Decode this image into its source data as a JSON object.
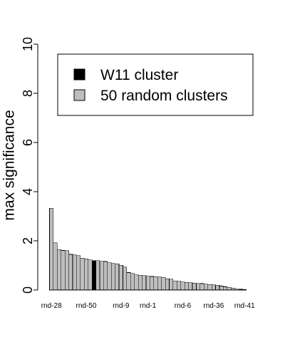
{
  "chart_data": {
    "type": "bar",
    "ylabel": "max significance",
    "ylim": [
      0,
      10
    ],
    "yticks": [
      0,
      2,
      4,
      6,
      8,
      10
    ],
    "legend_position": "top-right",
    "legend": [
      {
        "label": "W11 cluster",
        "color": "#000000"
      },
      {
        "label": "50 random clusters",
        "color": "#bebebe"
      }
    ],
    "highlight_color": "#000000",
    "default_color": "#bebebe",
    "categories": [
      "rnd-28",
      "",
      "",
      "",
      "",
      "",
      "",
      "",
      "",
      "rnd-50",
      "",
      "",
      "",
      "",
      "",
      "",
      "",
      "",
      "rnd-9",
      "",
      "",
      "",
      "",
      "",
      "",
      "rnd-1",
      "",
      "",
      "",
      "",
      "",
      "",
      "",
      "",
      "rnd-6",
      "",
      "",
      "",
      "",
      "",
      "",
      "",
      "rnd-36",
      "",
      "",
      "",
      "",
      "",
      "",
      "",
      "rnd-41"
    ],
    "values": [
      3.33,
      1.92,
      1.65,
      1.61,
      1.6,
      1.45,
      1.43,
      1.4,
      1.3,
      1.27,
      1.22,
      1.2,
      1.19,
      1.17,
      1.16,
      1.11,
      1.08,
      1.06,
      1.01,
      0.93,
      0.71,
      0.67,
      0.62,
      0.6,
      0.59,
      0.56,
      0.55,
      0.54,
      0.53,
      0.52,
      0.46,
      0.44,
      0.37,
      0.35,
      0.33,
      0.31,
      0.3,
      0.28,
      0.27,
      0.26,
      0.24,
      0.23,
      0.21,
      0.19,
      0.16,
      0.13,
      0.11,
      0.08,
      0.04,
      0.03,
      0.02
    ],
    "highlight_indices": [
      11
    ]
  }
}
